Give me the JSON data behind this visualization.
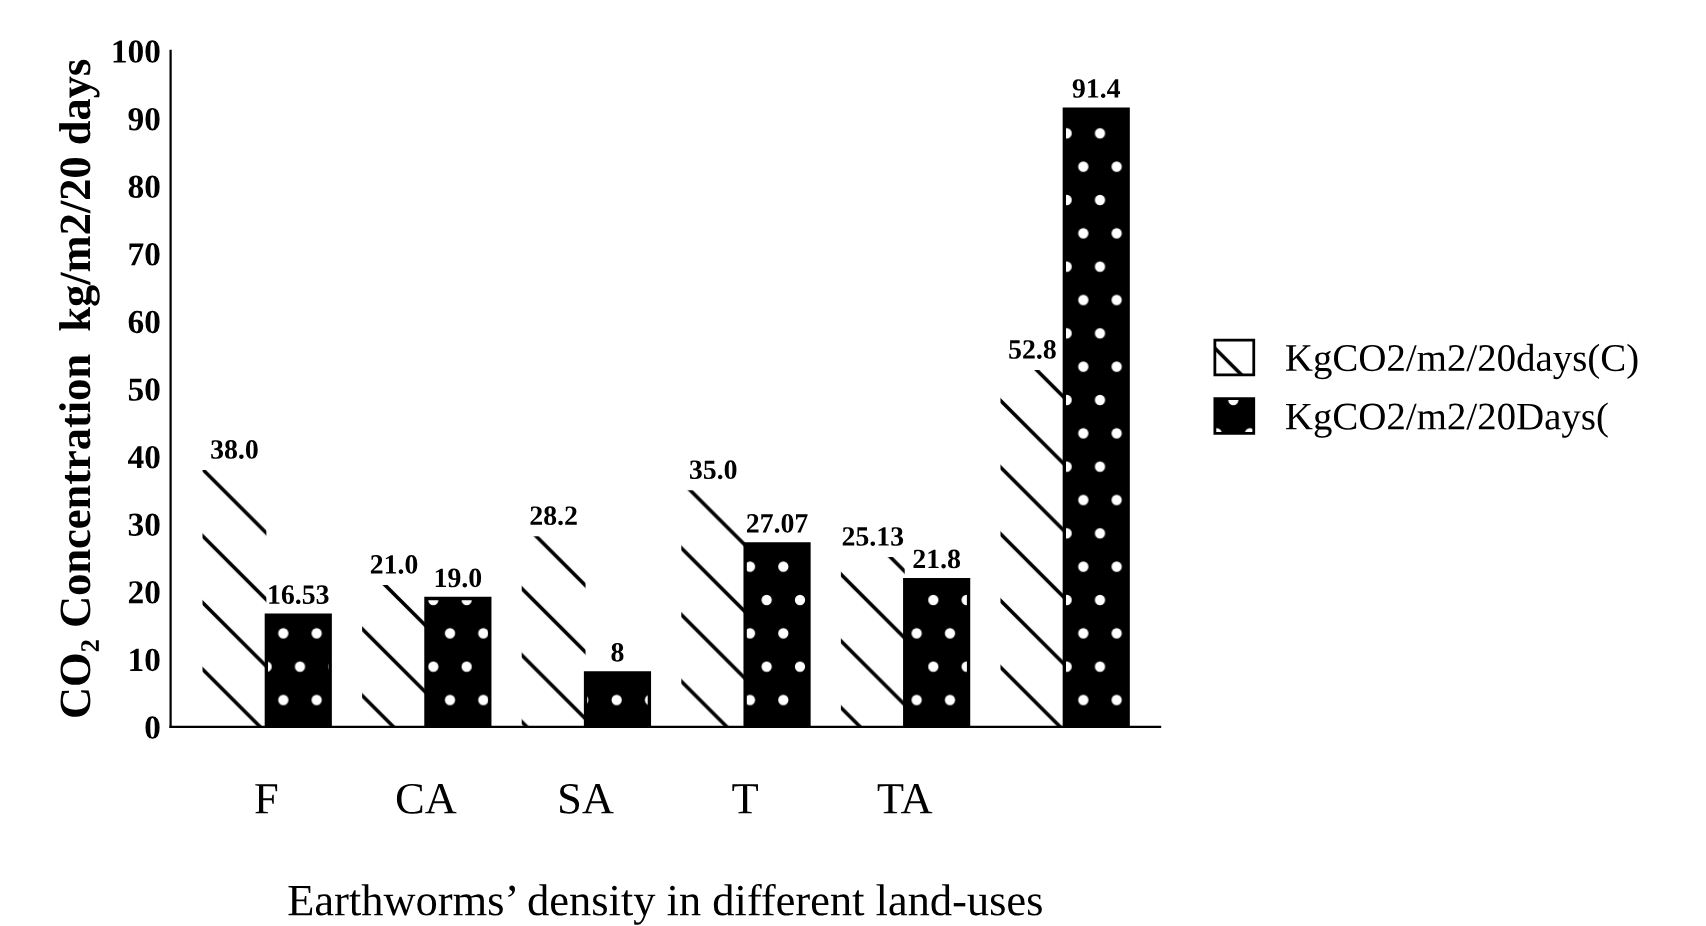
{
  "chart_data": {
    "type": "bar",
    "xlabel": "Earthworms’ density in different land-uses",
    "ylabel": "CO₂ Concentration  kg/m2/20 days",
    "categories": [
      "F",
      "CA",
      "SA",
      "T",
      "TA",
      null
    ],
    "series": [
      {
        "name": "KgCO2/m2/20days(C)",
        "color": "#ffffff",
        "values": [
          38.0,
          21.0,
          28.2,
          35.0,
          25.13,
          52.8
        ],
        "value_labels": [
          "38.0",
          "21.0",
          "28.2",
          "35.0",
          "25.13",
          "52.8"
        ]
      },
      {
        "name": "KgCO2/m2/20Days(",
        "color": "#000000",
        "values": [
          16.53,
          19.0,
          8,
          27.07,
          21.8,
          91.4
        ],
        "value_labels": [
          "16.53",
          "19.0",
          "8",
          "27.07",
          "21.8",
          "91.4"
        ]
      }
    ],
    "ylim": [
      0,
      100
    ],
    "yticks": [
      0,
      10,
      20,
      30,
      40,
      50,
      60,
      70,
      80,
      90,
      100
    ],
    "grid": false,
    "legend": "right"
  }
}
